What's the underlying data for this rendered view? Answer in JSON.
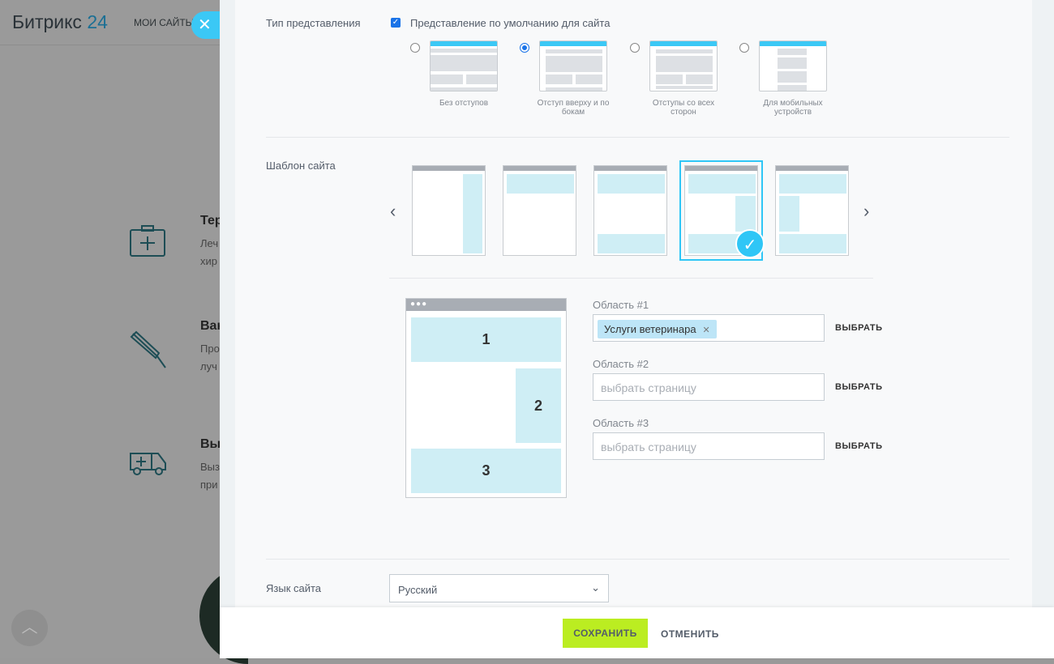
{
  "background": {
    "logo": "Битрикс",
    "logo_num": "24",
    "nav_my_sites": "МОИ САЙТЫ",
    "features": [
      {
        "title": "Тер",
        "desc1": "Леч",
        "desc2": "хир"
      },
      {
        "title": "Вак",
        "desc1": "Про",
        "desc2": "луч"
      },
      {
        "title": "Вы",
        "desc1": "Выз",
        "desc2": "при"
      }
    ]
  },
  "panel": {
    "view_type": {
      "label": "Тип представления",
      "default_checkbox_label": "Представление по умолчанию для сайта",
      "default_checked": true,
      "options": [
        {
          "caption": "Без отступов",
          "selected": false
        },
        {
          "caption": "Отступ вверху и по бокам",
          "selected": true
        },
        {
          "caption": "Отступы со всех сторон",
          "selected": false
        },
        {
          "caption": "Для мобильных устройств",
          "selected": false
        }
      ]
    },
    "template": {
      "label": "Шаблон сайта",
      "selected_index": 3,
      "areas": [
        {
          "label": "Область #1",
          "value": "Услуги ветеринара",
          "placeholder": "выбрать страницу",
          "pick": "ВЫБРАТЬ"
        },
        {
          "label": "Область #2",
          "value": "",
          "placeholder": "выбрать страницу",
          "pick": "ВЫБРАТЬ"
        },
        {
          "label": "Область #3",
          "value": "",
          "placeholder": "выбрать страницу",
          "pick": "ВЫБРАТЬ"
        }
      ],
      "preview_numbers": [
        "1",
        "2",
        "3"
      ]
    },
    "language": {
      "label": "Язык сайта",
      "value": "Русский"
    }
  },
  "footer": {
    "save": "СОХРАНИТЬ",
    "cancel": "ОТМЕНИТЬ"
  },
  "colors": {
    "accent": "#2fc6f6",
    "save": "#bbed21",
    "area": "#cfeef5"
  }
}
